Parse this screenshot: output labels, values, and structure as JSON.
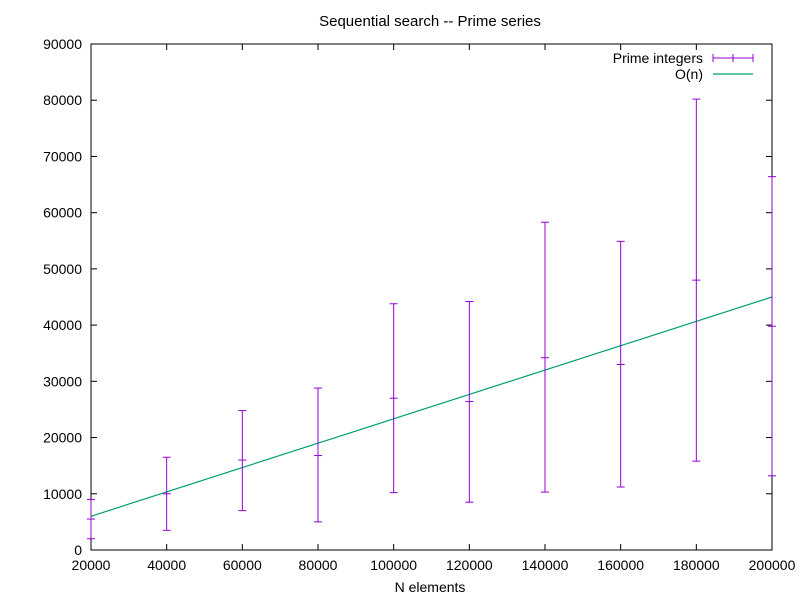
{
  "chart_data": {
    "type": "line",
    "title": "Sequential search -- Prime series",
    "xlabel": "N elements",
    "ylabel": "",
    "xlim": [
      20000,
      200000
    ],
    "ylim": [
      0,
      90000
    ],
    "xticks": [
      20000,
      40000,
      60000,
      80000,
      100000,
      120000,
      140000,
      160000,
      180000,
      200000
    ],
    "yticks": [
      0,
      10000,
      20000,
      30000,
      40000,
      50000,
      60000,
      70000,
      80000,
      90000
    ],
    "grid": false,
    "legend_position": "top-right",
    "colors": {
      "errorbars": "#9400d3",
      "line": "#009e73"
    },
    "series": [
      {
        "name": "Prime integers",
        "kind": "errorbars",
        "points": [
          {
            "x": 20000,
            "y": 5500,
            "ylow": 2000,
            "yhigh": 9000
          },
          {
            "x": 40000,
            "y": 10000,
            "ylow": 3500,
            "yhigh": 16500
          },
          {
            "x": 60000,
            "y": 16000,
            "ylow": 7000,
            "yhigh": 24800
          },
          {
            "x": 80000,
            "y": 16800,
            "ylow": 5000,
            "yhigh": 28800
          },
          {
            "x": 100000,
            "y": 27000,
            "ylow": 10200,
            "yhigh": 43800
          },
          {
            "x": 120000,
            "y": 26400,
            "ylow": 8500,
            "yhigh": 44200
          },
          {
            "x": 140000,
            "y": 34200,
            "ylow": 10300,
            "yhigh": 58300
          },
          {
            "x": 160000,
            "y": 33000,
            "ylow": 11200,
            "yhigh": 54900
          },
          {
            "x": 180000,
            "y": 48000,
            "ylow": 15800,
            "yhigh": 80200
          },
          {
            "x": 200000,
            "y": 39800,
            "ylow": 13200,
            "yhigh": 66400
          }
        ]
      },
      {
        "name": "O(n)",
        "kind": "line",
        "x": [
          20000,
          200000
        ],
        "y": [
          6000,
          45000
        ]
      }
    ]
  }
}
